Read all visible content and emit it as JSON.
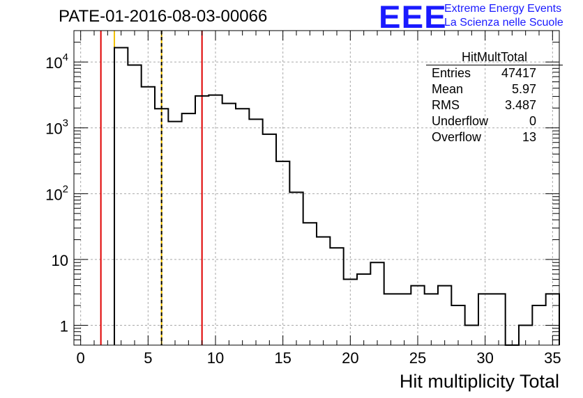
{
  "title": "PATE-01-2016-08-03-00066",
  "logo": {
    "mark": "EEE",
    "line1": "Extreme Energy Events",
    "line2": "La Scienza nelle Scuole",
    "color": "#1a1aff"
  },
  "stats": {
    "title": "HitMultTotal",
    "rows": [
      {
        "key": "Entries",
        "value": "47417"
      },
      {
        "key": "Mean",
        "value": "5.97"
      },
      {
        "key": "RMS",
        "value": "3.487"
      },
      {
        "key": "Underflow",
        "value": "0"
      },
      {
        "key": "Overflow",
        "value": "13"
      }
    ]
  },
  "chart_data": {
    "type": "histogram",
    "xlabel": "Hit multiplicity Total",
    "ylabel": "",
    "xlim": [
      -0.5,
      35.5
    ],
    "ylim": [
      0.5,
      30000
    ],
    "yscale": "log",
    "grid": true,
    "bin_edges_start": -0.5,
    "bin_width": 1,
    "counts": [
      0,
      0,
      0,
      16500,
      9000,
      4200,
      1950,
      1250,
      1650,
      3050,
      3150,
      2350,
      1950,
      1350,
      800,
      310,
      105,
      36,
      22,
      15,
      5,
      6,
      9,
      3,
      3,
      4,
      3,
      4,
      2,
      1,
      3,
      3,
      0,
      1,
      2,
      3
    ],
    "x_ticks": [
      0,
      5,
      10,
      15,
      20,
      25,
      30,
      35
    ],
    "y_ticks": [
      {
        "value": 1,
        "base": "1",
        "exp": ""
      },
      {
        "value": 10,
        "base": "10",
        "exp": ""
      },
      {
        "value": 100,
        "base": "10",
        "exp": "2"
      },
      {
        "value": 1000,
        "base": "10",
        "exp": "3"
      },
      {
        "value": 10000,
        "base": "10",
        "exp": "4"
      }
    ],
    "vertical_lines": [
      {
        "x": 1.5,
        "color": "#e00000",
        "style": "solid"
      },
      {
        "x": 2.5,
        "color": "#f0c000",
        "style": "solid"
      },
      {
        "x": 6.0,
        "color": "#f0c000",
        "style": "solid"
      },
      {
        "x": 6.0,
        "color": "#000000",
        "style": "dashed"
      },
      {
        "x": 9.0,
        "color": "#e00000",
        "style": "solid"
      }
    ],
    "line_color": "#000000"
  }
}
